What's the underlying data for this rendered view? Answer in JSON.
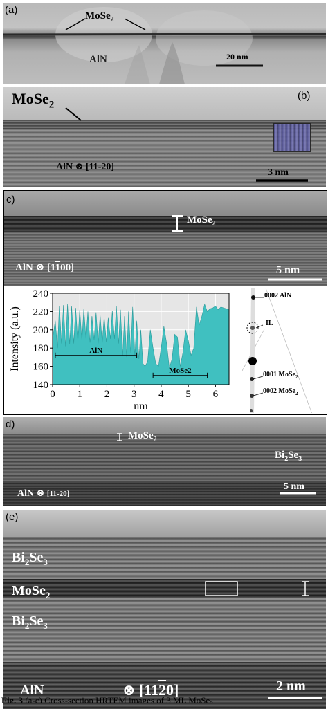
{
  "panel_a": {
    "label": "(a)",
    "mose2_label_base": "MoSe",
    "mose2_label_sub": "2",
    "aln_label": "AlN",
    "scale_bar": "20 nm"
  },
  "panel_b": {
    "label": "(b)",
    "mose2_label_base": "MoSe",
    "mose2_label_sub": "2",
    "aln_label": "AlN ⊗ [11-20]",
    "scale_bar": "3 nm"
  },
  "panel_c": {
    "label": "c)",
    "mose2_label_base": "MoSe",
    "mose2_label_sub": "2",
    "aln_label": "AlN ⊗ [1",
    "aln_label_bar": "1",
    "aln_label_end": "00]",
    "scale_bar": "5 nm",
    "diffraction_labels": {
      "aln_0002": "0002 AlN",
      "il": "IL",
      "mose2_0001_base": "0001 MoSe",
      "mose2_0001_sub": "2",
      "mose2_0002_base": "0002 MoSe",
      "mose2_0002_sub": "2"
    }
  },
  "chart_data": {
    "type": "area",
    "xlabel": "nm",
    "ylabel": "Intensity (a.u.)",
    "xlim": [
      0,
      6.5
    ],
    "ylim": [
      140,
      240
    ],
    "xticks": [
      0,
      1,
      2,
      3,
      4,
      5,
      6
    ],
    "yticks": [
      140,
      160,
      180,
      200,
      220,
      240
    ],
    "grid": true,
    "fill_color": "#40c0c0",
    "annotations": [
      {
        "text": "AlN",
        "x_from": 0.1,
        "x_to": 3.1,
        "y": 172
      },
      {
        "text": "MoSe2",
        "x_from": 3.7,
        "x_to": 5.7,
        "y": 150
      }
    ],
    "x": [
      0.0,
      0.1,
      0.18,
      0.25,
      0.33,
      0.4,
      0.48,
      0.55,
      0.63,
      0.7,
      0.78,
      0.85,
      0.93,
      1.0,
      1.08,
      1.15,
      1.23,
      1.3,
      1.38,
      1.45,
      1.53,
      1.6,
      1.68,
      1.75,
      1.83,
      1.9,
      1.98,
      2.05,
      2.13,
      2.2,
      2.28,
      2.35,
      2.43,
      2.5,
      2.58,
      2.65,
      2.73,
      2.8,
      2.88,
      2.95,
      3.03,
      3.1,
      3.18,
      3.25,
      3.33,
      3.4,
      3.5,
      3.6,
      3.7,
      3.8,
      3.9,
      4.0,
      4.1,
      4.2,
      4.3,
      4.4,
      4.5,
      4.6,
      4.7,
      4.8,
      4.9,
      5.0,
      5.1,
      5.2,
      5.3,
      5.4,
      5.5,
      5.6,
      5.7,
      5.8,
      5.9,
      6.0,
      6.1,
      6.2,
      6.3,
      6.4,
      6.5
    ],
    "y": [
      190,
      210,
      180,
      226,
      185,
      227,
      182,
      228,
      184,
      226,
      185,
      224,
      187,
      222,
      188,
      223,
      190,
      220,
      186,
      215,
      189,
      219,
      185,
      216,
      186,
      214,
      187,
      213,
      190,
      221,
      190,
      226,
      185,
      222,
      172,
      215,
      170,
      220,
      175,
      225,
      172,
      210,
      168,
      200,
      163,
      160,
      165,
      200,
      180,
      163,
      160,
      180,
      204,
      185,
      158,
      168,
      195,
      192,
      160,
      175,
      200,
      188,
      172,
      180,
      225,
      205,
      215,
      228,
      220,
      223,
      224,
      226,
      222,
      225,
      224,
      223,
      222
    ]
  }
}
